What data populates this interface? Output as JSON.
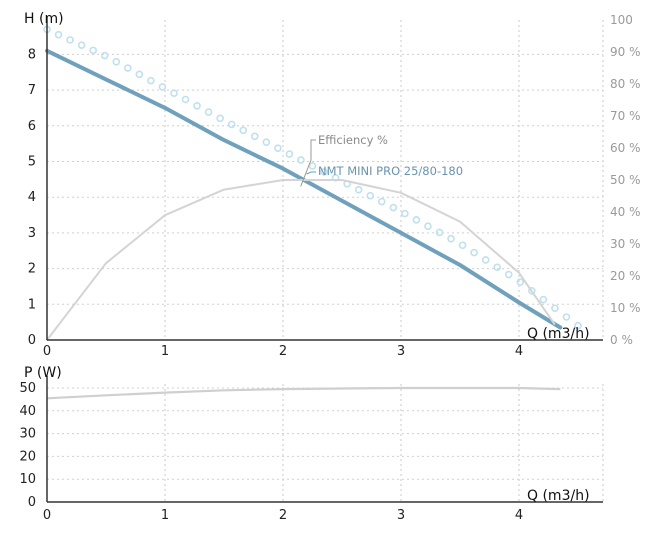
{
  "chart_data": [
    {
      "type": "line",
      "title": "",
      "ylabel": "H (m)",
      "xlabel": "Q (m3/h)",
      "xlim": [
        0,
        4.7
      ],
      "ylim": [
        0,
        9
      ],
      "x_ticks": [
        "0",
        "1",
        "2",
        "3",
        "4"
      ],
      "y_ticks": [
        "0",
        "1",
        "2",
        "3",
        "4",
        "5",
        "6",
        "7",
        "8"
      ],
      "y2_ticks": [
        "0 %",
        "10 %",
        "20 %",
        "30 %",
        "40 %",
        "50 %",
        "60 %",
        "70 %",
        "80 %",
        "90 %",
        "100"
      ],
      "y2lim": [
        0,
        100
      ],
      "grid": true,
      "series": [
        {
          "name": "NMT MINI PRO 25/80-180",
          "axis": "left",
          "style": "solid",
          "color": "#6fa0bc",
          "x": [
            0,
            0.5,
            1,
            1.5,
            2,
            2.5,
            3,
            3.5,
            4,
            4.35
          ],
          "y": [
            8.1,
            7.3,
            6.5,
            5.6,
            4.8,
            3.9,
            3.0,
            2.1,
            1.05,
            0.35
          ]
        },
        {
          "name": "",
          "axis": "left",
          "style": "dotted",
          "color": "#bfe0ee",
          "x": [
            0,
            0.5,
            1,
            1.5,
            2,
            2.5,
            3,
            3.5,
            4,
            4.5
          ],
          "y": [
            8.7,
            7.95,
            7.05,
            6.15,
            5.3,
            4.45,
            3.6,
            2.7,
            1.65,
            0.4
          ]
        },
        {
          "name": "Efficiency %",
          "axis": "right",
          "style": "solid",
          "color": "#d4d4d4",
          "x": [
            0,
            0.5,
            1,
            1.5,
            2,
            2.5,
            3,
            3.5,
            4,
            4.3
          ],
          "y": [
            0,
            24,
            39,
            47,
            50,
            50,
            46,
            37,
            21,
            5
          ]
        }
      ]
    },
    {
      "type": "line",
      "title": "",
      "ylabel": "P (W)",
      "xlabel": "Q (m3/h)",
      "xlim": [
        0,
        4.7
      ],
      "ylim": [
        0,
        50
      ],
      "x_ticks": [
        "0",
        "1",
        "2",
        "3",
        "4"
      ],
      "y_ticks": [
        "0",
        "10",
        "20",
        "30",
        "40",
        "50"
      ],
      "grid": true,
      "series": [
        {
          "name": "",
          "style": "solid",
          "color": "#cfcfcf",
          "x": [
            0,
            0.5,
            1,
            1.5,
            2,
            2.5,
            3,
            3.5,
            4,
            4.35
          ],
          "y": [
            45.5,
            46.8,
            48,
            49,
            49.5,
            49.8,
            50,
            50,
            50,
            49.5
          ]
        }
      ]
    }
  ]
}
